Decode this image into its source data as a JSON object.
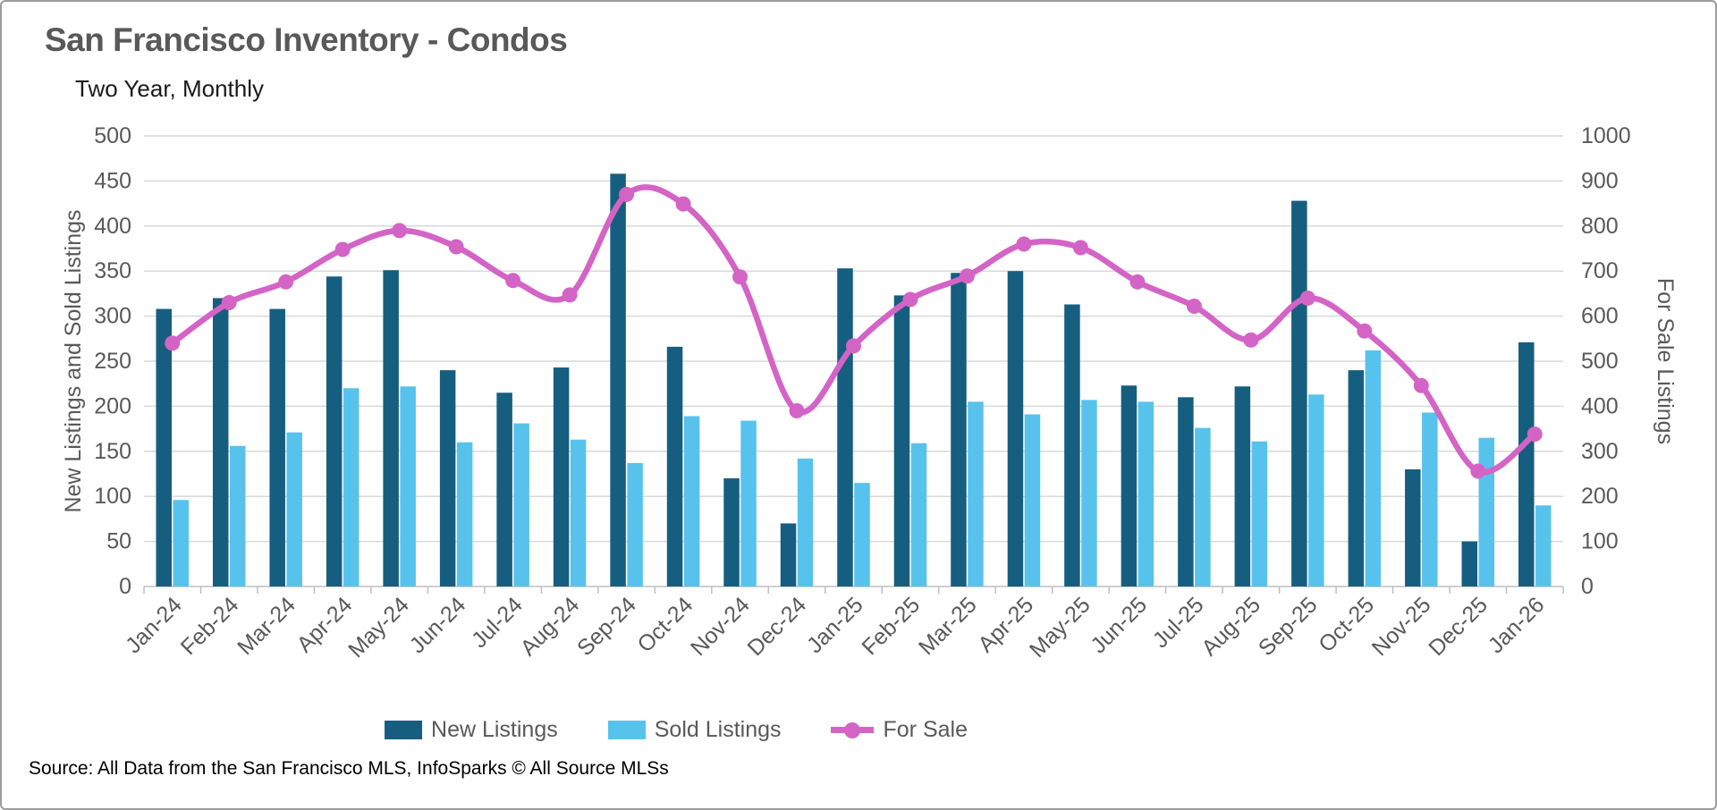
{
  "title": "San Francisco Inventory - Condos",
  "subtitle": "Two Year, Monthly",
  "source": "Source: All Data from the San Francisco MLS, InfoSparks © All Source MLSs",
  "legend": {
    "new_listings": "New Listings",
    "sold_listings": "Sold Listings",
    "for_sale": "For Sale"
  },
  "colors": {
    "new_listings": "#165e7f",
    "sold_listings": "#57c3ec",
    "for_sale": "#d364c6",
    "gridline": "#d9d9d9",
    "axis_line": "#bfbfbf",
    "axis_text": "#595959"
  },
  "chart_data": {
    "type": "bar",
    "subtype": "grouped bars + smoothed line, dual axis",
    "title": "San Francisco Inventory - Condos",
    "subtitle": "Two Year, Monthly",
    "grid": true,
    "legend_position": "bottom",
    "categories": [
      "Jan-24",
      "Feb-24",
      "Mar-24",
      "Apr-24",
      "May-24",
      "Jun-24",
      "Jul-24",
      "Aug-24",
      "Sep-24",
      "Oct-24",
      "Nov-24",
      "Dec-24",
      "Jan-25",
      "Feb-25",
      "Mar-25",
      "Apr-25",
      "May-25",
      "Jun-25",
      "Jul-25",
      "Aug-25",
      "Sep-25",
      "Oct-25",
      "Nov-25",
      "Dec-25",
      "Jan-26"
    ],
    "series": [
      {
        "name": "New Listings",
        "kind": "bar",
        "axis": "left",
        "values": [
          308,
          320,
          308,
          344,
          351,
          240,
          215,
          243,
          458,
          266,
          120,
          70,
          353,
          323,
          348,
          350,
          313,
          223,
          210,
          222,
          428,
          240,
          130,
          50,
          271
        ]
      },
      {
        "name": "Sold Listings",
        "kind": "bar",
        "axis": "left",
        "values": [
          96,
          156,
          171,
          220,
          222,
          160,
          181,
          163,
          137,
          189,
          184,
          142,
          115,
          159,
          205,
          191,
          207,
          205,
          176,
          161,
          213,
          262,
          193,
          165,
          90
        ]
      },
      {
        "name": "For Sale",
        "kind": "line",
        "axis": "right",
        "values": [
          540,
          630,
          676,
          748,
          790,
          754,
          679,
          647,
          870,
          849,
          687,
          390,
          534,
          637,
          689,
          760,
          752,
          676,
          622,
          547,
          640,
          567,
          446,
          256,
          338
        ]
      }
    ],
    "left_axis": {
      "title": "New Listings and Sold Listings",
      "min": 0,
      "max": 500,
      "step": 50,
      "ticks": [
        "0",
        "50",
        "100",
        "150",
        "200",
        "250",
        "300",
        "350",
        "400",
        "450",
        "500"
      ]
    },
    "right_axis": {
      "title": "For Sale Listings",
      "min": 0,
      "max": 1000,
      "step": 100,
      "ticks": [
        "0",
        "100",
        "200",
        "300",
        "400",
        "500",
        "600",
        "700",
        "800",
        "900",
        "1000"
      ]
    }
  }
}
